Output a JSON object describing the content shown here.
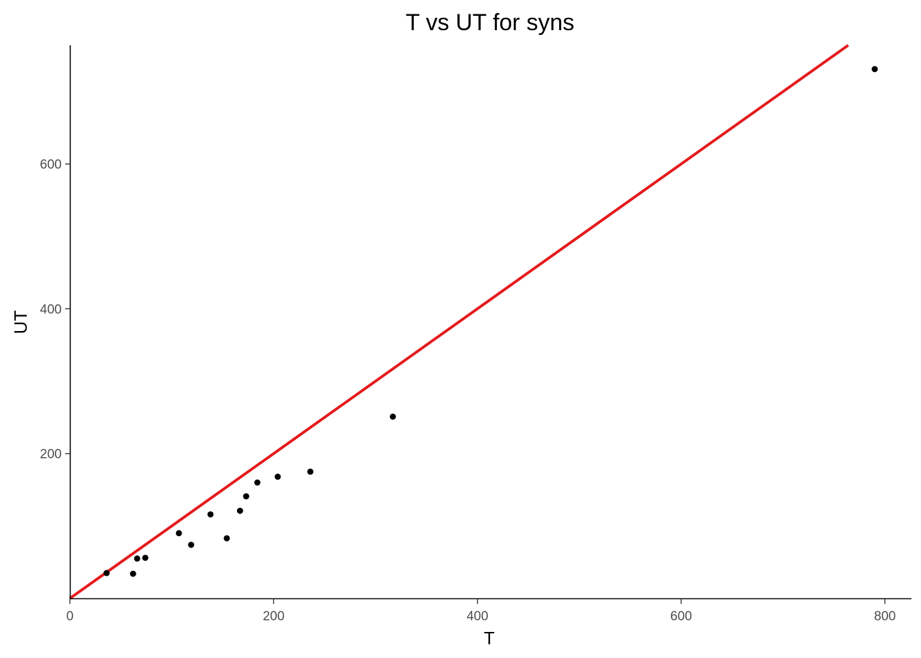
{
  "chart_data": {
    "type": "scatter",
    "title": "T vs UT for syns",
    "xlabel": "T",
    "ylabel": "UT",
    "xlim": [
      0,
      826
    ],
    "ylim": [
      0,
      764
    ],
    "xticks": [
      0,
      200,
      400,
      600,
      800
    ],
    "xtick_labels": [
      "0",
      "200",
      "400",
      "600",
      "800"
    ],
    "yticks": [
      200,
      400,
      600
    ],
    "ytick_labels": [
      "200",
      "400",
      "600"
    ],
    "grid": false,
    "legend": "none",
    "points": [
      {
        "x": 36,
        "y": 35
      },
      {
        "x": 62,
        "y": 34
      },
      {
        "x": 66,
        "y": 55
      },
      {
        "x": 74,
        "y": 56
      },
      {
        "x": 107,
        "y": 90
      },
      {
        "x": 119,
        "y": 74
      },
      {
        "x": 138,
        "y": 116
      },
      {
        "x": 154,
        "y": 83
      },
      {
        "x": 167,
        "y": 121
      },
      {
        "x": 173,
        "y": 141
      },
      {
        "x": 184,
        "y": 160
      },
      {
        "x": 204,
        "y": 168
      },
      {
        "x": 236,
        "y": 175
      },
      {
        "x": 317,
        "y": 251
      },
      {
        "x": 790,
        "y": 731
      }
    ],
    "reference_line": {
      "slope": 1,
      "intercept": 0,
      "color": "#e41a1c"
    },
    "point_color": "#000000"
  }
}
